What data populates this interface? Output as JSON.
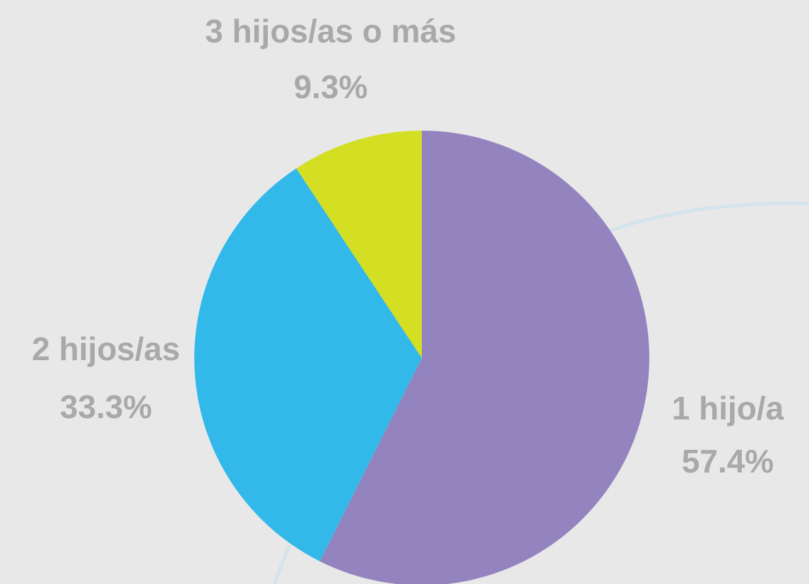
{
  "chart_data": {
    "type": "pie",
    "categories": [
      "1 hijo/a",
      "2 hijos/as",
      "3 hijos/as o más"
    ],
    "values": [
      57.4,
      33.3,
      9.3
    ],
    "value_labels": [
      "57.4%",
      "33.3%",
      "9.3%"
    ],
    "colors": [
      "#9384c0",
      "#33b8ea",
      "#d4de22"
    ]
  }
}
